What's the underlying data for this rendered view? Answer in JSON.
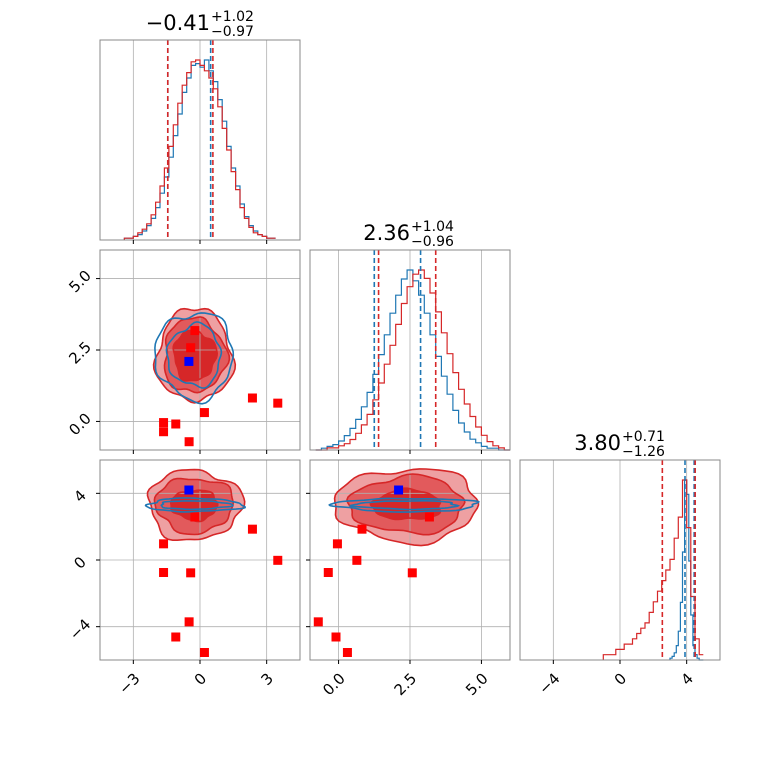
{
  "colors": {
    "blue": "#1f77b4",
    "red": "#d62728",
    "fill_light": "#eea0a2",
    "fill_mid": "#e25a5c",
    "fill_dark": "#d62728",
    "marker_red": "#ff0000",
    "marker_blue": "#0000ff",
    "grid": "#b0b0b0",
    "frame": "#888888"
  },
  "chart_data": {
    "type": "corner",
    "parameters": [
      {
        "index": 0,
        "range": [
          -4.5,
          4.5
        ],
        "ticks": [
          -3,
          0,
          3
        ],
        "tick_labels": [
          "−3",
          "0",
          "3"
        ]
      },
      {
        "index": 1,
        "range": [
          -1.0,
          6.0
        ],
        "ticks": [
          0.0,
          2.5,
          5.0
        ],
        "tick_labels": [
          "0.0",
          "2.5",
          "5.0"
        ]
      },
      {
        "index": 2,
        "range": [
          -6.0,
          6.0
        ],
        "ticks": [
          -4,
          0,
          4
        ],
        "tick_labels": [
          "−4",
          "0",
          "4"
        ]
      }
    ],
    "titles": [
      {
        "param": 0,
        "value": "−0.41",
        "plus": "+1.02",
        "minus": "−0.97"
      },
      {
        "param": 1,
        "value": "2.36",
        "plus": "+1.04",
        "minus": "−0.96"
      },
      {
        "param": 2,
        "value": "3.80",
        "plus": "+0.71",
        "minus": "−1.26"
      }
    ],
    "quantile_lines": [
      {
        "param": 0,
        "blue": [
          -1.45,
          0.48
        ],
        "red": [
          -1.45,
          0.58
        ]
      },
      {
        "param": 1,
        "blue": [
          1.25,
          2.87
        ],
        "red": [
          1.4,
          3.4
        ]
      },
      {
        "param": 2,
        "blue": [
          3.9,
          4.45
        ],
        "red": [
          2.54,
          4.51
        ]
      }
    ],
    "histograms": [
      {
        "param": 0,
        "series": [
          {
            "color": "blue",
            "x_start": -3.4,
            "bin_width": 0.2,
            "counts": [
              1,
              1,
              2,
              3,
              5,
              8,
              12,
              18,
              26,
              35,
              46,
              58,
              70,
              82,
              90,
              97,
              98,
              96,
              100,
              94,
              88,
              78,
              66,
              52,
              40,
              30,
              20,
              13,
              8,
              5,
              3,
              2,
              1,
              1
            ]
          },
          {
            "color": "red",
            "x_start": -3.4,
            "bin_width": 0.2,
            "counts": [
              1,
              1,
              2,
              4,
              6,
              9,
              14,
              21,
              30,
              40,
              52,
              64,
              76,
              86,
              93,
              99,
              100,
              97,
              94,
              90,
              84,
              74,
              62,
              50,
              38,
              28,
              18,
              12,
              7,
              4,
              3,
              2,
              1,
              1
            ]
          }
        ]
      },
      {
        "param": 1,
        "series": [
          {
            "color": "blue",
            "x_start": -0.8,
            "bin_width": 0.2,
            "counts": [
              0,
              1,
              2,
              3,
              5,
              8,
              12,
              17,
              24,
              32,
              42,
              53,
              64,
              76,
              86,
              95,
              100,
              94,
              86,
              76,
              64,
              52,
              41,
              31,
              22,
              15,
              10,
              6,
              4,
              2,
              1,
              1,
              0,
              0
            ]
          },
          {
            "color": "red",
            "x_start": -0.8,
            "bin_width": 0.2,
            "counts": [
              0,
              0,
              1,
              1,
              2,
              3,
              5,
              8,
              12,
              17,
              24,
              32,
              41,
              50,
              60,
              70,
              78,
              84,
              86,
              82,
              75,
              66,
              56,
              46,
              37,
              29,
              22,
              16,
              11,
              7,
              4,
              2,
              1,
              0
            ]
          }
        ]
      },
      {
        "param": 2,
        "series": [
          {
            "color": "blue",
            "x_start": 3.0,
            "bin_width": 0.125,
            "counts": [
              1,
              2,
              4,
              8,
              16,
              32,
              60,
              100,
              92,
              55,
              25,
              8,
              3,
              1,
              0,
              0
            ]
          },
          {
            "color": "red",
            "x_start": -1.0,
            "bin_width": 0.25,
            "counts": [
              1,
              1,
              1,
              2,
              2,
              3,
              3,
              4,
              5,
              6,
              7,
              9,
              11,
              13,
              15,
              17,
              19,
              23,
              27,
              34,
              25,
              12,
              4,
              1
            ]
          }
        ]
      }
    ],
    "contours_2d": [
      {
        "x_param": 0,
        "y_param": 1,
        "center": [
          -0.25,
          2.3
        ],
        "red_levels": [
          {
            "rx": 1.7,
            "ry": 1.62
          },
          {
            "rx": 1.4,
            "ry": 1.3
          },
          {
            "rx": 0.95,
            "ry": 0.88
          }
        ],
        "blue_levels": [
          {
            "rx": 1.75,
            "ry": 1.52
          },
          {
            "rx": 1.2,
            "ry": 1.08
          }
        ]
      },
      {
        "x_param": 0,
        "y_param": 2,
        "center": [
          -0.25,
          3.3
        ],
        "red_levels": [
          {
            "rx": 2.1,
            "ry": 2.1
          },
          {
            "rx": 1.75,
            "ry": 1.65
          },
          {
            "rx": 1.05,
            "ry": 0.9
          }
        ],
        "blue_levels": [
          {
            "rx": 2.15,
            "ry": 0.4
          },
          {
            "rx": 1.6,
            "ry": 0.25
          }
        ]
      },
      {
        "x_param": 1,
        "y_param": 2,
        "center": [
          2.4,
          3.3
        ],
        "red_levels": [
          {
            "rx": 2.5,
            "ry": 2.2
          },
          {
            "rx": 2.0,
            "ry": 1.7
          },
          {
            "rx": 1.2,
            "ry": 0.9
          }
        ],
        "blue_levels": [
          {
            "rx": 2.5,
            "ry": 0.4
          },
          {
            "rx": 1.8,
            "ry": 0.25
          }
        ]
      }
    ],
    "markers": {
      "red_squares": [
        [
          -1.64,
          -0.04,
          0.97
        ],
        [
          -1.64,
          -0.36,
          -0.75
        ],
        [
          -1.09,
          -0.09,
          -4.62
        ],
        [
          -0.49,
          -0.71,
          -3.71
        ],
        [
          -0.42,
          2.58,
          -0.77
        ],
        [
          -0.23,
          3.18,
          2.58
        ],
        [
          0.2,
          0.31,
          -5.55
        ],
        [
          2.36,
          0.82,
          1.85
        ],
        [
          3.5,
          0.64,
          -0.02
        ]
      ],
      "blue_square": [
        -0.5,
        2.1,
        4.2
      ]
    },
    "grid": true
  }
}
